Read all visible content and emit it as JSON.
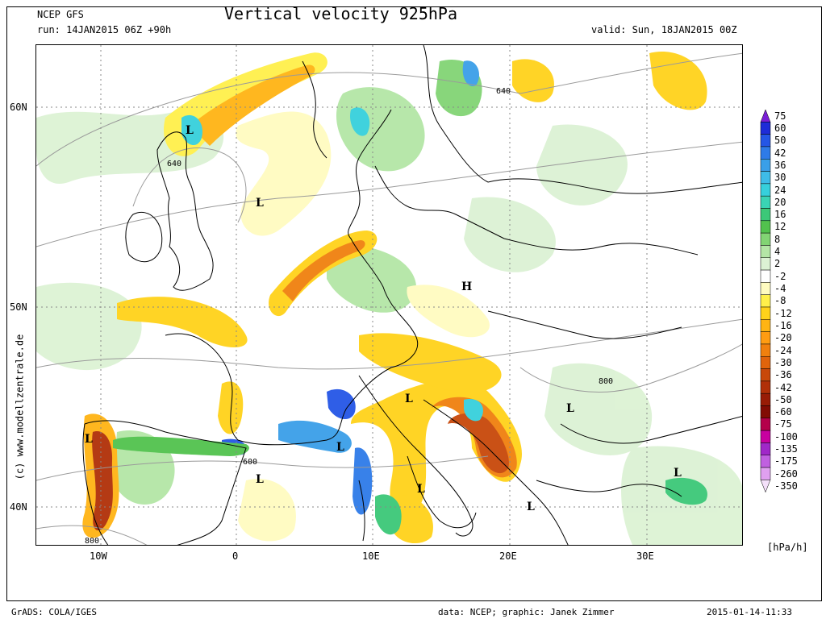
{
  "header": {
    "model": "NCEP GFS",
    "run": "run: 14JAN2015 06Z +90h",
    "title": "Vertical velocity 925hPa",
    "valid": "valid: Sun, 18JAN2015 00Z"
  },
  "axes": {
    "y_labels": [
      "60N",
      "50N",
      "40N"
    ],
    "x_labels": [
      "10W",
      "0",
      "10E",
      "20E",
      "30E"
    ]
  },
  "credit": "(c) www.modellzentrale.de",
  "footer": {
    "grads": "GrADS: COLA/IGES",
    "data": "data: NCEP; graphic: Janek Zimmer",
    "timestamp": "2015-01-14-11:33"
  },
  "legend": {
    "unit": "[hPa/h]",
    "levels": [
      "75",
      "60",
      "50",
      "42",
      "36",
      "30",
      "24",
      "20",
      "16",
      "12",
      "8",
      "4",
      "2",
      "-2",
      "-4",
      "-8",
      "-12",
      "-16",
      "-20",
      "-24",
      "-30",
      "-36",
      "-42",
      "-50",
      "-60",
      "-75",
      "-100",
      "-135",
      "-175",
      "-260",
      "-350"
    ],
    "colors": [
      "#7a1fd6",
      "#1e2cd8",
      "#2456e6",
      "#2e7be8",
      "#3a9fe8",
      "#3ebce8",
      "#36d0dc",
      "#3ad4b4",
      "#3cc878",
      "#52c24e",
      "#82d474",
      "#b4e6a6",
      "#dcf2d4",
      "#ffffff",
      "#fffbc0",
      "#fff04a",
      "#ffd21a",
      "#ffb414",
      "#ff9c12",
      "#f0800e",
      "#e0640c",
      "#c8480a",
      "#b03008",
      "#981c06",
      "#820c04",
      "#b4004a",
      "#c800a0",
      "#a028c8",
      "#c060e0",
      "#e0a0f0",
      "#f4e0fa"
    ]
  },
  "map_labels": {
    "lows": [
      "L",
      "L",
      "L",
      "L",
      "L",
      "L",
      "L",
      "L",
      "L",
      "L"
    ],
    "high": "H",
    "isobars": [
      "640",
      "640",
      "600",
      "800",
      "800"
    ]
  },
  "colors": {
    "land_border": "#000000",
    "isobar": "#9a9a9a",
    "grid": "#888888"
  }
}
